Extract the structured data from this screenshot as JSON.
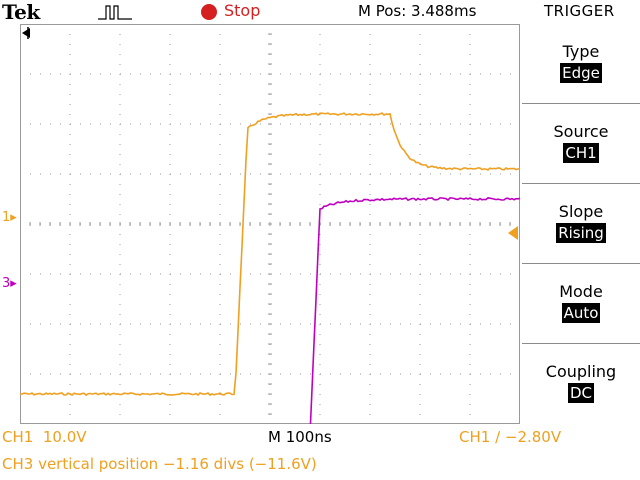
{
  "header": {
    "brand": "Tek",
    "acq_icon": "pulse-acquire-icon",
    "run_state": "Stop",
    "run_state_color": "#d42020",
    "m_pos": "M Pos: 3.488ms",
    "menu_title": "TRIGGER"
  },
  "menu": [
    {
      "label": "Type",
      "value": "Edge"
    },
    {
      "label": "Source",
      "value": "CH1"
    },
    {
      "label": "Slope",
      "value": "Rising"
    },
    {
      "label": "Mode",
      "value": "Auto"
    },
    {
      "label": "Coupling",
      "value": "DC"
    }
  ],
  "markers": {
    "ch1": "1",
    "ch3": "3"
  },
  "status": {
    "ch1_scale": "CH1  10.0V",
    "timebase": "M 100ns",
    "trigger_readout": "CH1 ∕ −2.80V",
    "ch3_message": "CH3 vertical position −1.16 divs (−11.6V)"
  },
  "colors": {
    "ch1": "#f0a020",
    "ch3": "#c000c0",
    "grid": "#9a9a9a"
  },
  "waveforms": {
    "ch1": {
      "low_level_div": -3.4,
      "high_level_div": 2.2,
      "rise_time_div": 4.3,
      "settle_level_div": 1.1,
      "fall_time_div": 7.4
    },
    "ch3": {
      "low_level_div": -4.2,
      "high_level_div": 0.4,
      "rise_time_div": 5.8,
      "settle_level_div": 0.5
    }
  }
}
